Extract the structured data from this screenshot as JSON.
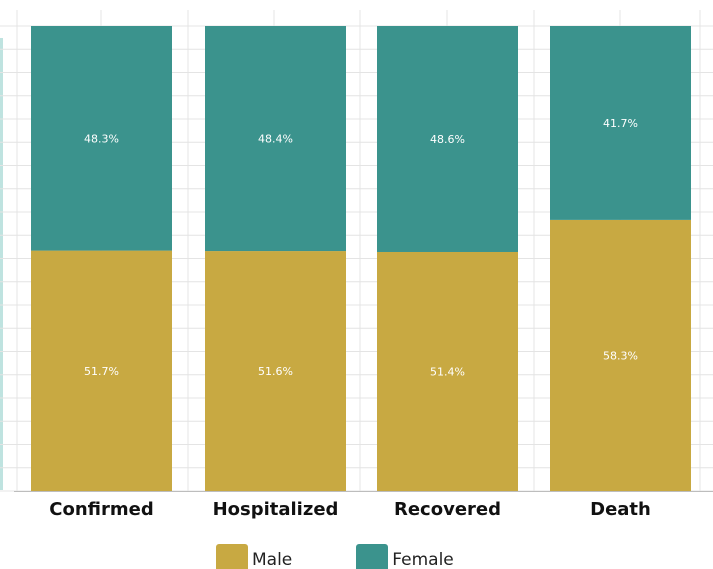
{
  "chart_data": {
    "type": "bar",
    "stacked": true,
    "categories": [
      "Confirmed",
      "Hospitalized",
      "Recovered",
      "Death"
    ],
    "series": [
      {
        "name": "Male",
        "color": "#c8a942",
        "values": [
          51.7,
          51.6,
          51.4,
          58.3
        ],
        "labels": [
          "51.7%",
          "51.6%",
          "51.4%",
          "58.3%"
        ]
      },
      {
        "name": "Female",
        "color": "#3b938d",
        "values": [
          48.3,
          48.4,
          48.6,
          41.7
        ],
        "labels": [
          "48.3%",
          "48.4%",
          "48.6%",
          "41.7%"
        ]
      }
    ],
    "ylim": [
      0,
      100
    ],
    "grid": true,
    "legend_position": "bottom",
    "title": "",
    "xlabel": "",
    "ylabel": ""
  }
}
